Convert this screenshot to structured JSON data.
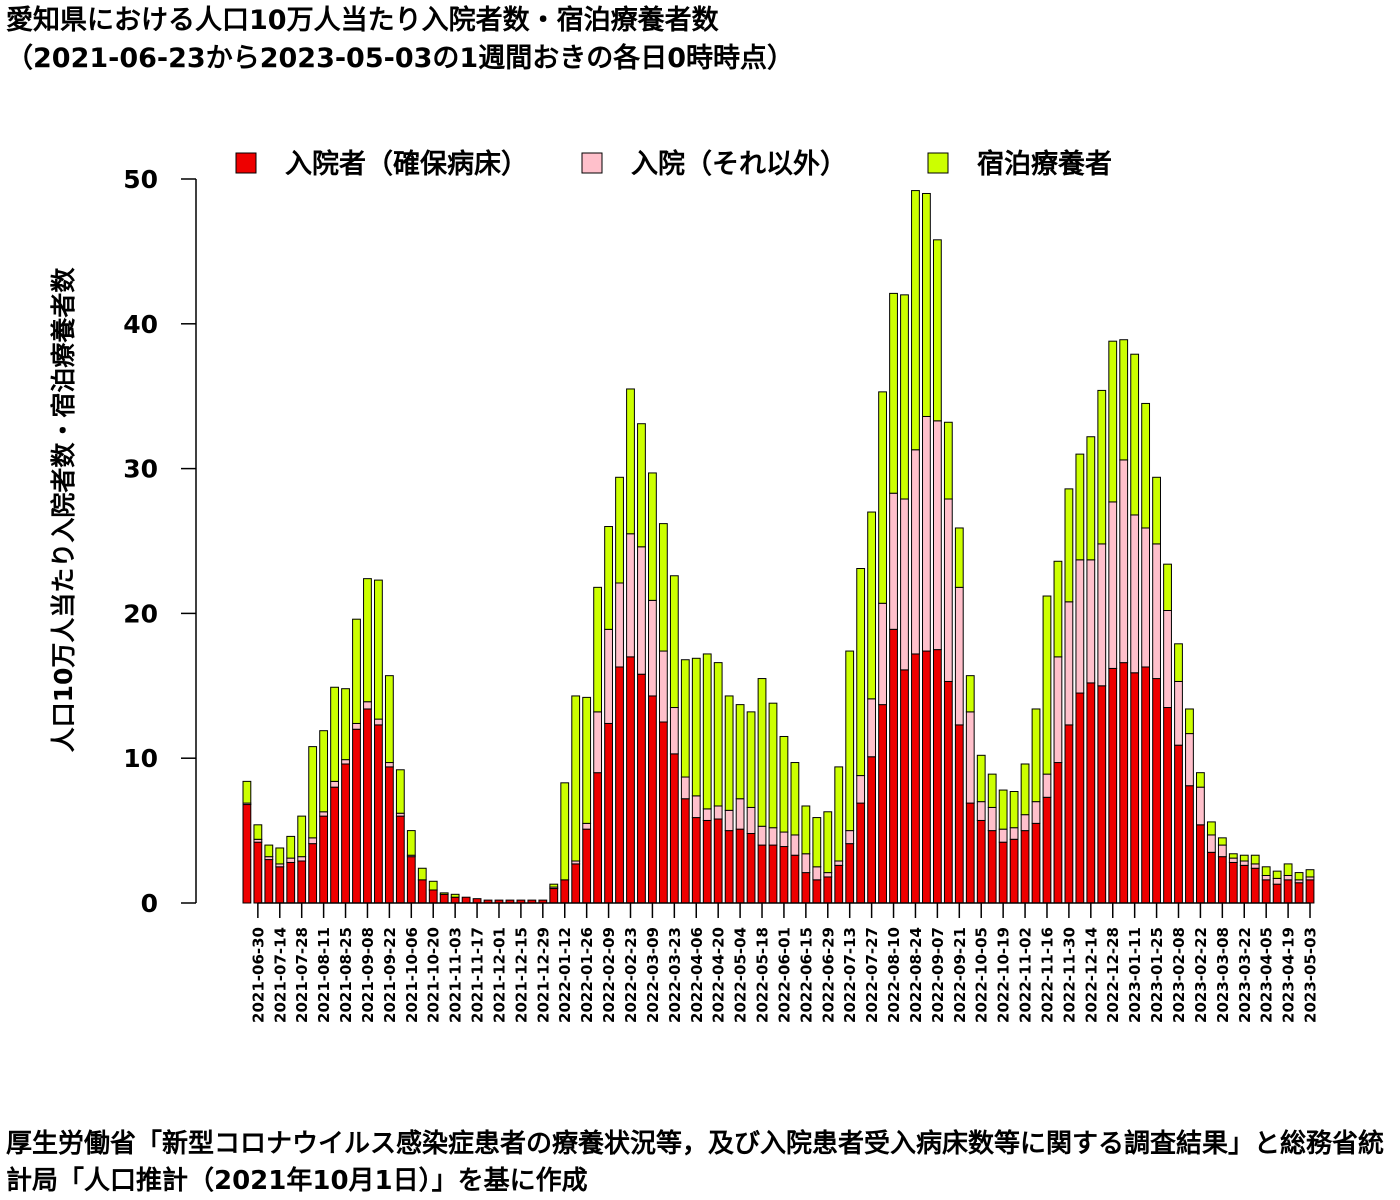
{
  "title": {
    "line1": "愛知県における人口10万人当たり入院者数・宿泊療養者数",
    "line2": "（2021-06-23から2023-05-03の1週間おきの各日0時時点）"
  },
  "source_note": "厚生労働省「新型コロナウイルス感染症患者の療養状況等，及び入院患者受入病床数等に関する調査結果」と総務省統計局「人口推計（2021年10月1日）」を基に作成",
  "colors": {
    "hospital_secured": "#ee0000",
    "hospital_other": "#ffc0cb",
    "hotel": "#ccff00"
  },
  "chart_data": {
    "type": "bar",
    "stacked": true,
    "ylabel": "人口10万人当たり入院者数・宿泊療養者数",
    "xlabel": "",
    "ylim": [
      0,
      50
    ],
    "yticks": [
      0,
      10,
      20,
      30,
      40,
      50
    ],
    "legend_position": "top",
    "x_tick_labels": [
      "2021-06-30",
      "2021-07-14",
      "2021-07-28",
      "2021-08-11",
      "2021-08-25",
      "2021-09-08",
      "2021-09-22",
      "2021-10-06",
      "2021-10-20",
      "2021-11-03",
      "2021-11-17",
      "2021-12-01",
      "2021-12-15",
      "2021-12-29",
      "2022-01-12",
      "2022-01-26",
      "2022-02-09",
      "2022-02-23",
      "2022-03-09",
      "2022-03-23",
      "2022-04-06",
      "2022-04-20",
      "2022-05-04",
      "2022-05-18",
      "2022-06-01",
      "2022-06-15",
      "2022-06-29",
      "2022-07-13",
      "2022-07-27",
      "2022-08-10",
      "2022-08-24",
      "2022-09-07",
      "2022-09-21",
      "2022-10-05",
      "2022-10-19",
      "2022-11-02",
      "2022-11-16",
      "2022-11-30",
      "2022-12-14",
      "2022-12-28",
      "2023-01-11",
      "2023-01-25",
      "2023-02-08",
      "2023-02-22",
      "2023-03-08",
      "2023-03-22",
      "2023-04-05",
      "2023-04-19",
      "2023-05-03"
    ],
    "series": [
      {
        "name": "入院者（確保病床）",
        "color": "#ee0000",
        "values": [
          6.8,
          4.2,
          3.0,
          2.5,
          2.8,
          2.9,
          4.1,
          6.0,
          8.0,
          9.6,
          12.0,
          13.4,
          12.3,
          9.4,
          6.0,
          3.2,
          1.6,
          0.9,
          0.6,
          0.4,
          0.4,
          0.3,
          0.2,
          0.2,
          0.2,
          0.2,
          0.2,
          0.2,
          1.0,
          1.6,
          2.7,
          5.1,
          9.0,
          12.4,
          16.3,
          17.0,
          15.8,
          14.3,
          12.5,
          10.3,
          7.2,
          5.9,
          5.7,
          5.8,
          5.0,
          5.1,
          4.8,
          4.0,
          4.0,
          3.9,
          3.3,
          2.1,
          1.6,
          1.8,
          2.6,
          4.1,
          6.9,
          10.1,
          13.7,
          18.9,
          16.1,
          17.2,
          17.4,
          17.5,
          15.3,
          12.3,
          6.9,
          5.7,
          5.0,
          4.2,
          4.4,
          5.0,
          5.5,
          7.3,
          9.7,
          12.3,
          14.5,
          15.2,
          15.0,
          16.2,
          16.6,
          15.9,
          16.3,
          15.5,
          13.5,
          10.9,
          8.1,
          5.4,
          3.5,
          3.2,
          2.8,
          2.6,
          2.4,
          1.6,
          1.3,
          1.6,
          1.4,
          1.6
        ]
      },
      {
        "name": "入院（それ以外）",
        "color": "#ffc0cb",
        "values": [
          0.1,
          0.2,
          0.2,
          0.2,
          0.3,
          0.3,
          0.4,
          0.3,
          0.4,
          0.3,
          0.4,
          0.5,
          0.4,
          0.3,
          0.2,
          0.1,
          0.0,
          0.0,
          0.0,
          0.0,
          0.0,
          0.0,
          0.0,
          0.0,
          0.0,
          0.0,
          0.0,
          0.0,
          0.1,
          0.0,
          0.2,
          0.4,
          4.2,
          6.5,
          5.8,
          8.5,
          8.8,
          6.6,
          4.9,
          3.2,
          1.5,
          1.5,
          0.8,
          0.9,
          1.4,
          2.1,
          1.8,
          1.3,
          1.2,
          1.0,
          1.4,
          1.3,
          0.9,
          0.3,
          0.3,
          0.9,
          1.9,
          4.0,
          7.0,
          9.4,
          11.8,
          14.1,
          16.2,
          15.8,
          12.6,
          9.5,
          6.3,
          1.3,
          1.6,
          0.9,
          0.8,
          1.1,
          1.5,
          1.6,
          7.3,
          8.5,
          9.2,
          8.5,
          9.8,
          11.5,
          14.0,
          10.9,
          9.6,
          9.3,
          6.7,
          4.4,
          3.6,
          2.6,
          1.2,
          0.8,
          0.3,
          0.3,
          0.3,
          0.3,
          0.4,
          0.3,
          0.2,
          0.2
        ]
      },
      {
        "name": "宿泊療養者",
        "color": "#ccff00",
        "values": [
          1.5,
          1.0,
          0.8,
          1.1,
          1.5,
          2.8,
          6.3,
          5.6,
          6.5,
          4.9,
          7.2,
          8.5,
          9.6,
          6.0,
          3.0,
          1.7,
          0.8,
          0.6,
          0.1,
          0.2,
          0.0,
          0.0,
          0.0,
          0.0,
          0.0,
          0.0,
          0.0,
          0.0,
          0.2,
          6.7,
          11.4,
          8.7,
          8.6,
          7.1,
          7.3,
          10.0,
          8.5,
          8.8,
          8.8,
          9.1,
          8.1,
          9.5,
          10.7,
          9.9,
          7.9,
          6.5,
          6.6,
          10.2,
          8.6,
          6.6,
          5.0,
          3.3,
          3.4,
          4.2,
          6.5,
          12.4,
          14.3,
          12.9,
          14.6,
          13.8,
          14.1,
          17.9,
          15.4,
          12.5,
          5.3,
          4.1,
          2.5,
          3.2,
          2.3,
          2.7,
          2.5,
          3.5,
          6.4,
          12.3,
          6.6,
          7.8,
          7.3,
          8.5,
          10.6,
          11.1,
          8.3,
          11.1,
          8.6,
          4.6,
          3.2,
          2.6,
          1.7,
          1.0,
          0.9,
          0.5,
          0.3,
          0.4,
          0.6,
          0.6,
          0.5,
          0.8,
          0.5,
          0.5
        ]
      }
    ]
  }
}
